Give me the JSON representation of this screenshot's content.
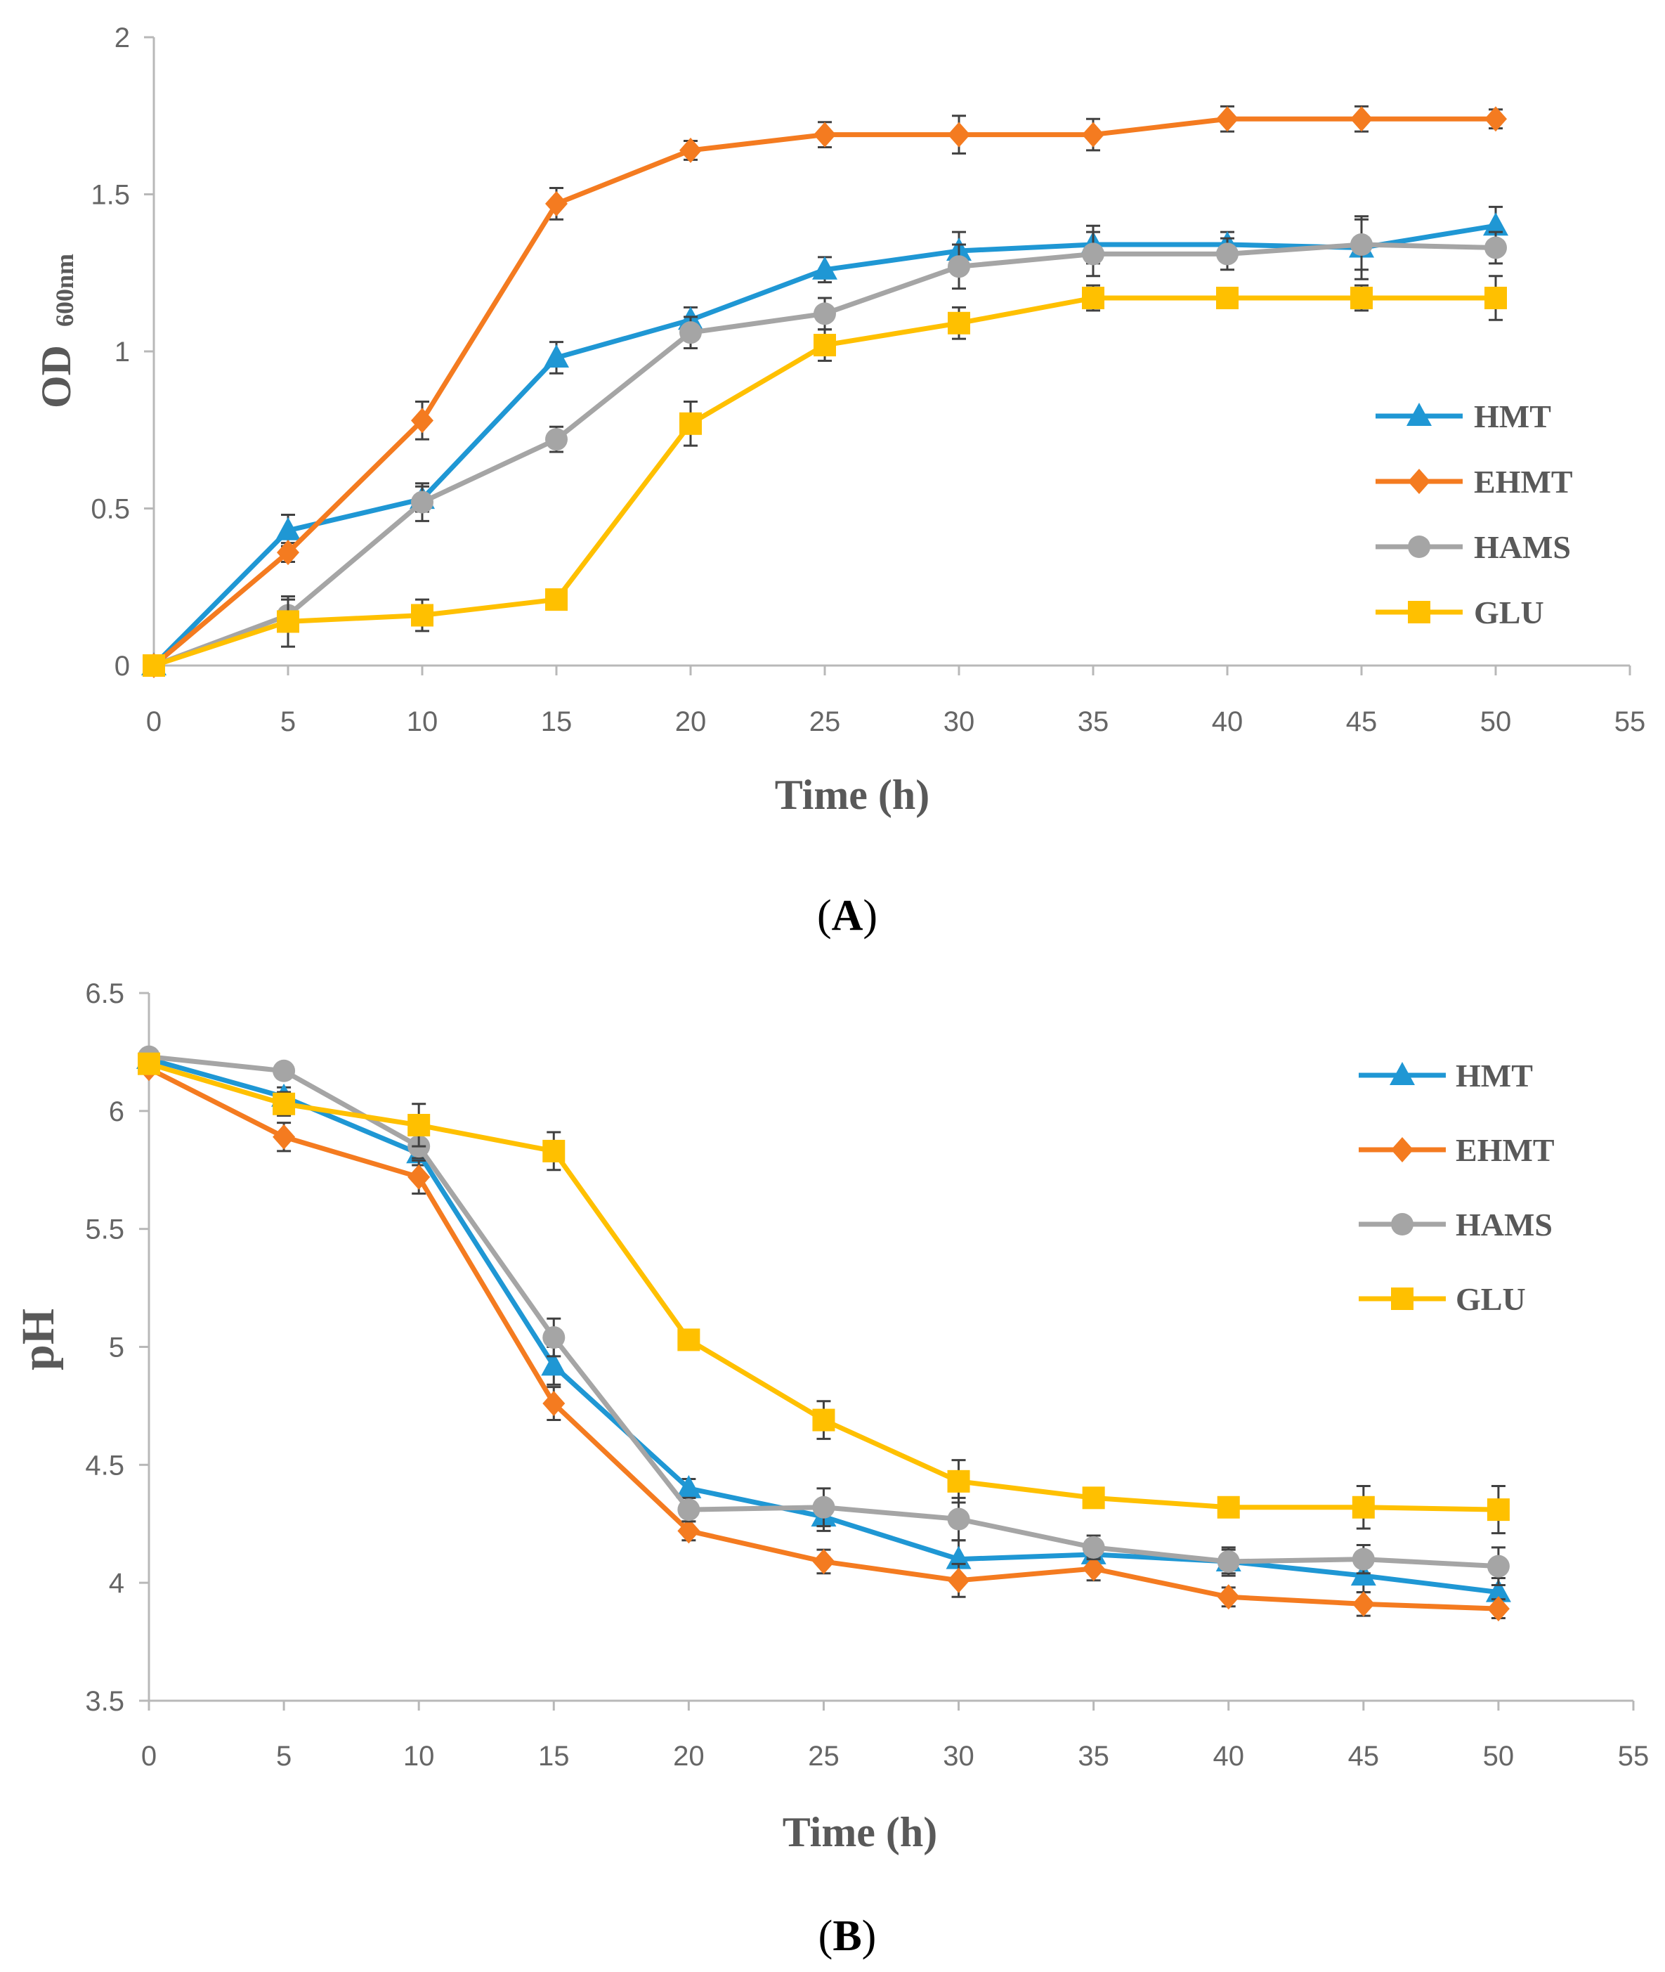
{
  "colors": {
    "HMT": "#1f97d4",
    "EHMT": "#f47b20",
    "HAMS": "#a5a5a5",
    "GLU": "#ffc000",
    "axis": "#b8b8b8",
    "errorbar": "#404040"
  },
  "chart_data": [
    {
      "id": "A",
      "type": "line",
      "panel_label": {
        "open": "(",
        "letter": "A",
        "close": ")"
      },
      "ylabel": {
        "main": "OD",
        "sub": "600nm"
      },
      "xlabel": "Time (h)",
      "xlim": [
        0,
        55
      ],
      "ylim": [
        0,
        2
      ],
      "xticks": [
        0,
        5,
        10,
        15,
        20,
        25,
        30,
        35,
        40,
        45,
        50,
        55
      ],
      "yticks": [
        0,
        0.5,
        1,
        1.5,
        2
      ],
      "ytick_labels": [
        "0",
        "0.5",
        "1",
        "1.5",
        "2"
      ],
      "x": [
        0,
        5,
        10,
        15,
        20,
        25,
        30,
        35,
        40,
        45,
        50
      ],
      "legend": [
        "HMT",
        "EHMT",
        "HAMS",
        "GLU"
      ],
      "series": [
        {
          "name": "HMT",
          "marker": "triangle",
          "values": [
            0,
            0.43,
            0.53,
            0.98,
            1.1,
            1.26,
            1.32,
            1.34,
            1.34,
            1.33,
            1.4
          ],
          "errors": [
            0,
            0.05,
            0.04,
            0.05,
            0.04,
            0.04,
            0.06,
            0.06,
            0.04,
            0.1,
            0.06
          ]
        },
        {
          "name": "EHMT",
          "marker": "diamond",
          "values": [
            0,
            0.36,
            0.78,
            1.47,
            1.64,
            1.69,
            1.69,
            1.69,
            1.74,
            1.74,
            1.74
          ],
          "errors": [
            0,
            0.03,
            0.06,
            0.05,
            0.03,
            0.04,
            0.06,
            0.05,
            0.04,
            0.04,
            0.03
          ]
        },
        {
          "name": "HAMS",
          "marker": "circle",
          "values": [
            0,
            0.16,
            0.52,
            0.72,
            1.06,
            1.12,
            1.27,
            1.31,
            1.31,
            1.34,
            1.33
          ],
          "errors": [
            0,
            0.05,
            0.06,
            0.04,
            0.05,
            0.05,
            0.07,
            0.07,
            0.05,
            0.08,
            0.05
          ]
        },
        {
          "name": "GLU",
          "marker": "square",
          "values": [
            0,
            0.14,
            0.16,
            0.21,
            0.77,
            1.02,
            1.09,
            1.17,
            1.17,
            1.17,
            1.17
          ],
          "errors": [
            0,
            0.08,
            0.05,
            0.03,
            0.07,
            0.05,
            0.05,
            0.04,
            0.03,
            0.04,
            0.07
          ]
        }
      ]
    },
    {
      "id": "B",
      "type": "line",
      "panel_label": {
        "open": "(",
        "letter": "B",
        "close": ")"
      },
      "ylabel": {
        "main": "pH",
        "sub": ""
      },
      "xlabel": "Time (h)",
      "xlim": [
        0,
        55
      ],
      "ylim": [
        3.5,
        6.5
      ],
      "xticks": [
        0,
        5,
        10,
        15,
        20,
        25,
        30,
        35,
        40,
        45,
        50,
        55
      ],
      "yticks": [
        3.5,
        4,
        4.5,
        5,
        5.5,
        6,
        6.5
      ],
      "ytick_labels": [
        "3.5",
        "4",
        "4.5",
        "5",
        "5.5",
        "6",
        "6.5"
      ],
      "x": [
        0,
        5,
        10,
        15,
        20,
        25,
        30,
        35,
        40,
        45,
        50
      ],
      "legend": [
        "HMT",
        "EHMT",
        "HAMS",
        "GLU"
      ],
      "series": [
        {
          "name": "HMT",
          "marker": "triangle",
          "values": [
            6.22,
            6.06,
            5.82,
            4.92,
            4.4,
            4.28,
            4.1,
            4.12,
            4.09,
            4.03,
            3.96
          ],
          "errors": [
            0,
            0.04,
            0.05,
            0.08,
            0.04,
            0.06,
            0.08,
            0.06,
            0.05,
            0.07,
            0.06
          ]
        },
        {
          "name": "EHMT",
          "marker": "diamond",
          "values": [
            6.18,
            5.89,
            5.72,
            4.76,
            4.22,
            4.09,
            4.01,
            4.06,
            3.94,
            3.91,
            3.89
          ],
          "errors": [
            0,
            0.06,
            0.07,
            0.07,
            0.04,
            0.05,
            0.07,
            0.05,
            0.04,
            0.05,
            0.04
          ]
        },
        {
          "name": "HAMS",
          "marker": "circle",
          "values": [
            6.23,
            6.17,
            5.85,
            5.04,
            4.31,
            4.32,
            4.27,
            4.15,
            4.09,
            4.1,
            4.07
          ],
          "errors": [
            0,
            0.03,
            0.05,
            0.08,
            0.05,
            0.08,
            0.09,
            0.05,
            0.06,
            0.06,
            0.08
          ]
        },
        {
          "name": "GLU",
          "marker": "square",
          "values": [
            6.2,
            6.03,
            5.94,
            5.83,
            5.03,
            4.69,
            4.43,
            4.36,
            4.32,
            4.32,
            4.31
          ],
          "errors": [
            0,
            0.05,
            0.09,
            0.08,
            0.04,
            0.08,
            0.09,
            0.04,
            0.04,
            0.09,
            0.1
          ]
        }
      ]
    }
  ]
}
